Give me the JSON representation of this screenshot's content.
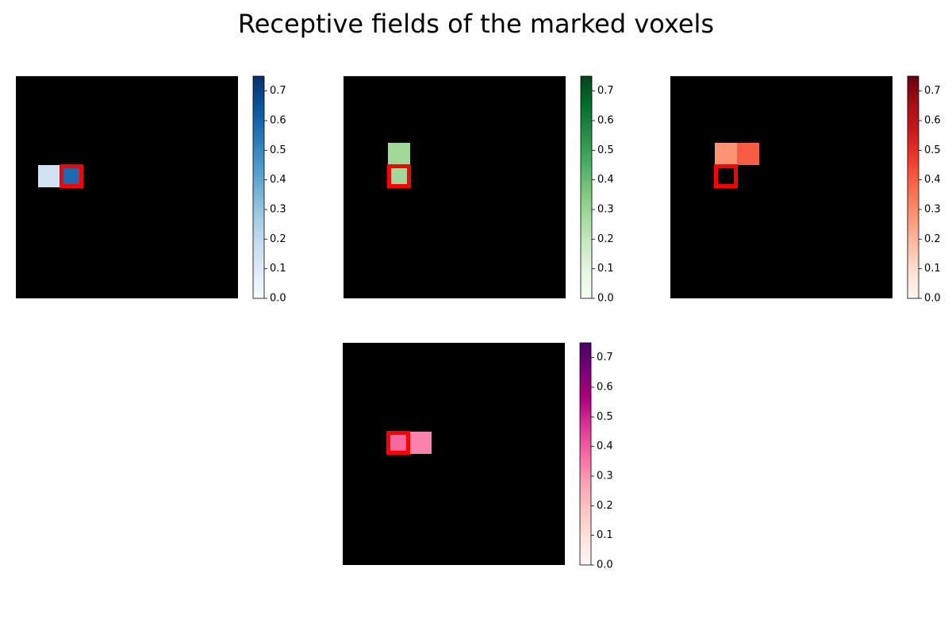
{
  "title": "Receptive fields of the marked voxels",
  "chart_data": [
    {
      "type": "heatmap",
      "cmap": "Blues",
      "clim": [
        0,
        0.75
      ],
      "yticks": [
        {
          "value": 0,
          "label": "0.0"
        },
        0.1,
        0.2,
        0.3,
        0.4,
        0.5,
        0.6,
        0.7
      ],
      "marked": {
        "row": 4,
        "col": 2
      },
      "marker_color": "#ff0000",
      "values": [
        [
          null,
          null,
          null,
          null,
          null,
          null,
          null,
          null,
          null,
          null
        ],
        [
          null,
          null,
          null,
          null,
          null,
          null,
          null,
          null,
          null,
          null
        ],
        [
          null,
          null,
          null,
          null,
          null,
          null,
          null,
          null,
          null,
          null
        ],
        [
          null,
          null,
          null,
          null,
          null,
          null,
          null,
          null,
          null,
          null
        ],
        [
          null,
          0.15,
          0.58,
          null,
          null,
          null,
          null,
          null,
          null,
          null
        ],
        [
          null,
          null,
          null,
          null,
          null,
          null,
          null,
          null,
          null,
          null
        ],
        [
          null,
          null,
          null,
          null,
          null,
          null,
          null,
          null,
          null,
          null
        ],
        [
          null,
          null,
          null,
          null,
          null,
          null,
          null,
          null,
          null,
          null
        ],
        [
          null,
          null,
          null,
          null,
          null,
          null,
          null,
          null,
          null,
          null
        ],
        [
          null,
          null,
          null,
          null,
          null,
          null,
          null,
          null,
          null,
          null
        ]
      ]
    },
    {
      "type": "heatmap",
      "cmap": "Greens",
      "clim": [
        0,
        0.75
      ],
      "yticks": [
        {
          "value": 0,
          "label": "0.0"
        },
        0.1,
        0.2,
        0.3,
        0.4,
        0.5,
        0.6,
        0.7
      ],
      "marked": {
        "row": 4,
        "col": 2
      },
      "marker_color": "#ff0000",
      "values": [
        [
          null,
          null,
          null,
          null,
          null,
          null,
          null,
          null,
          null,
          null
        ],
        [
          null,
          null,
          null,
          null,
          null,
          null,
          null,
          null,
          null,
          null
        ],
        [
          null,
          null,
          null,
          null,
          null,
          null,
          null,
          null,
          null,
          null
        ],
        [
          null,
          null,
          0.28,
          null,
          null,
          null,
          null,
          null,
          null,
          null
        ],
        [
          null,
          null,
          0.28,
          null,
          null,
          null,
          null,
          null,
          null,
          null
        ],
        [
          null,
          null,
          null,
          null,
          null,
          null,
          null,
          null,
          null,
          null
        ],
        [
          null,
          null,
          null,
          null,
          null,
          null,
          null,
          null,
          null,
          null
        ],
        [
          null,
          null,
          null,
          null,
          null,
          null,
          null,
          null,
          null,
          null
        ],
        [
          null,
          null,
          null,
          null,
          null,
          null,
          null,
          null,
          null,
          null
        ],
        [
          null,
          null,
          null,
          null,
          null,
          null,
          null,
          null,
          null,
          null
        ]
      ]
    },
    {
      "type": "heatmap",
      "cmap": "Reds",
      "clim": [
        0,
        0.75
      ],
      "yticks": [
        {
          "value": 0,
          "label": "0.0"
        },
        0.1,
        0.2,
        0.3,
        0.4,
        0.5,
        0.6,
        0.7
      ],
      "marked": {
        "row": 4,
        "col": 2
      },
      "marker_color": "#ff0000",
      "values": [
        [
          null,
          null,
          null,
          null,
          null,
          null,
          null,
          null,
          null,
          null
        ],
        [
          null,
          null,
          null,
          null,
          null,
          null,
          null,
          null,
          null,
          null
        ],
        [
          null,
          null,
          null,
          null,
          null,
          null,
          null,
          null,
          null,
          null
        ],
        [
          null,
          null,
          0.28,
          0.4,
          null,
          null,
          null,
          null,
          null,
          null
        ],
        [
          null,
          null,
          null,
          null,
          null,
          null,
          null,
          null,
          null,
          null
        ],
        [
          null,
          null,
          null,
          null,
          null,
          null,
          null,
          null,
          null,
          null
        ],
        [
          null,
          null,
          null,
          null,
          null,
          null,
          null,
          null,
          null,
          null
        ],
        [
          null,
          null,
          null,
          null,
          null,
          null,
          null,
          null,
          null,
          null
        ],
        [
          null,
          null,
          null,
          null,
          null,
          null,
          null,
          null,
          null,
          null
        ],
        [
          null,
          null,
          null,
          null,
          null,
          null,
          null,
          null,
          null,
          null
        ]
      ]
    },
    {
      "type": "heatmap",
      "cmap": "RdPu",
      "clim": [
        0,
        0.75
      ],
      "yticks": [
        {
          "value": 0,
          "label": "0.0"
        },
        0.1,
        0.2,
        0.3,
        0.4,
        0.5,
        0.6,
        0.7
      ],
      "marked": {
        "row": 4,
        "col": 2
      },
      "marker_color": "#ff0000",
      "values": [
        [
          null,
          null,
          null,
          null,
          null,
          null,
          null,
          null,
          null,
          null
        ],
        [
          null,
          null,
          null,
          null,
          null,
          null,
          null,
          null,
          null,
          null
        ],
        [
          null,
          null,
          null,
          null,
          null,
          null,
          null,
          null,
          null,
          null
        ],
        [
          null,
          null,
          null,
          null,
          null,
          null,
          null,
          null,
          null,
          null
        ],
        [
          null,
          null,
          0.375,
          0.33,
          null,
          null,
          null,
          null,
          null,
          null
        ],
        [
          null,
          null,
          null,
          null,
          null,
          null,
          null,
          null,
          null,
          null
        ],
        [
          null,
          null,
          null,
          null,
          null,
          null,
          null,
          null,
          null,
          null
        ],
        [
          null,
          null,
          null,
          null,
          null,
          null,
          null,
          null,
          null,
          null
        ],
        [
          null,
          null,
          null,
          null,
          null,
          null,
          null,
          null,
          null,
          null
        ],
        [
          null,
          null,
          null,
          null,
          null,
          null,
          null,
          null,
          null,
          null
        ]
      ]
    }
  ]
}
